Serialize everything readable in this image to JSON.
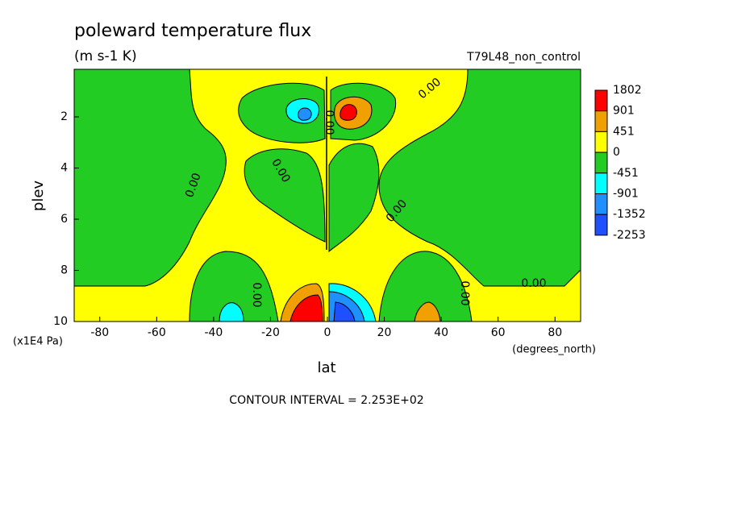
{
  "chart_data": {
    "type": "contour",
    "title": "poleward temperature flux",
    "subtitle": "(m s-1 K)",
    "dataset": "T79L48_non_control",
    "xlabel": "lat",
    "ylabel": "plev",
    "x_units": "(degrees_north)",
    "y_units": "(x1E4 Pa)",
    "footer": "CONTOUR INTERVAL = 2.253E+02",
    "xlim": [
      -89,
      89
    ],
    "ylim": [
      10,
      0.14
    ],
    "xticks": [
      -80,
      -60,
      -40,
      -20,
      0,
      20,
      40,
      60,
      80
    ],
    "yticks": [
      2,
      4,
      6,
      8,
      10
    ],
    "levels": [
      1802,
      901,
      451,
      0,
      -451,
      -901,
      -1352,
      -2253
    ],
    "colors": [
      "#ff0000",
      "#f0a000",
      "#ffff00",
      "#22cc22",
      "#00ffff",
      "#1e90ff",
      "#1f50ff"
    ],
    "contour_labels": [
      "0.00",
      "0.00",
      "0.00",
      "0.00",
      "0.00",
      "0.00",
      "0.00",
      "0.00"
    ]
  }
}
